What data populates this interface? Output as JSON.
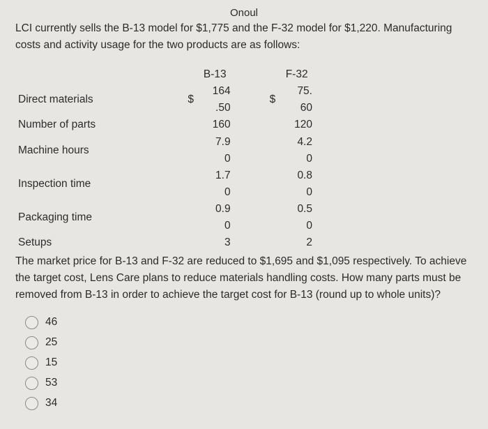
{
  "header_fragment": "Onoul",
  "intro": "LCI currently sells the B-13 model for $1,775 and the F-32 model for $1,220. Manufacturing costs and activity usage for the two products are as follows:",
  "table": {
    "col_headers": [
      "B-13",
      "F-32"
    ],
    "rows": [
      {
        "label": "Direct materials",
        "b13_cur": "$",
        "b13": "164.50",
        "f32_cur": "$",
        "f32": "75.60"
      },
      {
        "label": "Number of parts",
        "b13_cur": "",
        "b13": "160",
        "f32_cur": "",
        "f32": "120"
      },
      {
        "label": "Machine hours",
        "b13_cur": "",
        "b13": "7.90",
        "f32_cur": "",
        "f32": "4.20"
      },
      {
        "label": "Inspection time",
        "b13_cur": "",
        "b13": "1.70",
        "f32_cur": "",
        "f32": "0.80"
      },
      {
        "label": "Packaging time",
        "b13_cur": "",
        "b13": "0.90",
        "f32_cur": "",
        "f32": "0.50"
      },
      {
        "label": "Setups",
        "b13_cur": "",
        "b13": "3",
        "f32_cur": "",
        "f32": "2"
      }
    ]
  },
  "question": "The market price for B-13 and F-32 are reduced to $1,695 and $1,095 respectively. To achieve the target cost, Lens Care plans to reduce materials handling costs. How many parts must be removed from B-13 in order to achieve the target cost for B-13 (round up to whole units)?",
  "options": [
    "46",
    "25",
    "15",
    "53",
    "34"
  ]
}
